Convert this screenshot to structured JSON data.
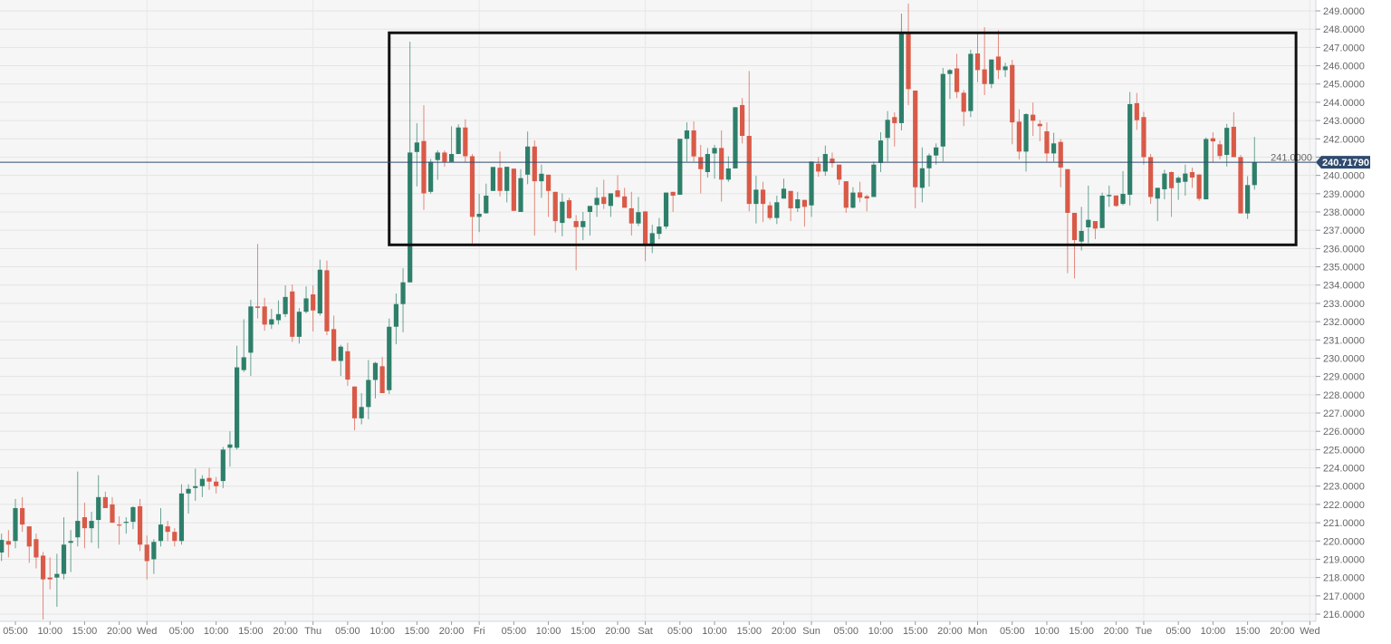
{
  "chart_data": {
    "type": "candlestick",
    "title": "",
    "xlabel": "",
    "ylabel": "",
    "ylim": [
      216,
      249
    ],
    "y_ticks": [
      "216.0000",
      "217.0000",
      "218.0000",
      "219.0000",
      "220.0000",
      "221.0000",
      "222.0000",
      "223.0000",
      "224.0000",
      "225.0000",
      "226.0000",
      "227.0000",
      "228.0000",
      "229.0000",
      "230.0000",
      "231.0000",
      "232.0000",
      "233.0000",
      "234.0000",
      "235.0000",
      "236.0000",
      "237.0000",
      "238.0000",
      "239.0000",
      "240.0000",
      "241.0000",
      "242.0000",
      "243.0000",
      "244.0000",
      "245.0000",
      "246.0000",
      "247.0000",
      "248.0000",
      "249.0000"
    ],
    "x_ticks": [
      "05:00",
      "10:00",
      "15:00",
      "20:00",
      "Wed",
      "05:00",
      "10:00",
      "15:00",
      "20:00",
      "Thu",
      "05:00",
      "10:00",
      "15:00",
      "20:00",
      "Fri",
      "05:00",
      "10:00",
      "15:00",
      "20:00",
      "Sat",
      "05:00",
      "10:00",
      "15:00",
      "20:00",
      "Sun",
      "05:00",
      "10:00",
      "15:00",
      "20:00",
      "Mon",
      "05:00",
      "10:00",
      "15:00",
      "20:00",
      "Tue",
      "05:00",
      "10:00",
      "15:00",
      "20:00",
      "Wed"
    ],
    "grid": true,
    "interval": "1h",
    "current_price": {
      "value": 240.7179,
      "label": "240.71790"
    },
    "annotation_box": {
      "time_range": [
        "Thu 11:00",
        "Tue 22:00"
      ],
      "price_range": [
        236.2,
        247.8
      ]
    },
    "colors": {
      "up": "#2e7f6a",
      "down": "#d95a48",
      "price_line": "#2f4a6e",
      "box": "#111111",
      "background": "#f6f6f6",
      "grid": "#e4e4e4"
    },
    "ohlc_columns": [
      "open",
      "high",
      "low",
      "close"
    ],
    "candles": [
      [
        219.37,
        220.4,
        218.9,
        220.06
      ],
      [
        220.0,
        220.6,
        219.1,
        219.8
      ],
      [
        220.0,
        222.3,
        219.6,
        221.8
      ],
      [
        221.8,
        222.4,
        220.5,
        220.9
      ],
      [
        220.8,
        220.8,
        218.8,
        219.7
      ],
      [
        220.1,
        220.4,
        218.5,
        219.1
      ],
      [
        219.2,
        219.4,
        215.7,
        217.9
      ],
      [
        218.0,
        219.1,
        217.35,
        217.9
      ],
      [
        218.0,
        219.3,
        216.4,
        218.2
      ],
      [
        218.2,
        221.3,
        217.9,
        219.8
      ],
      [
        219.9,
        220.6,
        218.3,
        220.0
      ],
      [
        220.2,
        223.8,
        219.7,
        221.1
      ],
      [
        221.3,
        222.1,
        219.6,
        220.7
      ],
      [
        220.7,
        221.6,
        219.9,
        221.1
      ],
      [
        221.15,
        223.6,
        219.6,
        222.4
      ],
      [
        222.4,
        222.7,
        221.8,
        221.8
      ],
      [
        222.0,
        222.4,
        221.0,
        221.0
      ],
      [
        220.9,
        221.35,
        219.8,
        220.85
      ],
      [
        221.0,
        221.3,
        220.4,
        221.05
      ],
      [
        221.05,
        221.9,
        220.65,
        221.85
      ],
      [
        221.9,
        222.3,
        219.45,
        219.8
      ],
      [
        219.8,
        220.3,
        217.9,
        218.9
      ],
      [
        219.0,
        220.1,
        218.2,
        219.95
      ],
      [
        220.0,
        221.8,
        219.7,
        220.9
      ],
      [
        220.8,
        221.1,
        220.0,
        220.5
      ],
      [
        220.5,
        220.7,
        219.7,
        220.0
      ],
      [
        220.0,
        223.1,
        219.8,
        222.6
      ],
      [
        222.6,
        223.1,
        221.5,
        222.85
      ],
      [
        222.9,
        223.96,
        222.2,
        223.0
      ],
      [
        223.0,
        223.6,
        222.4,
        223.4
      ],
      [
        223.45,
        224.0,
        222.8,
        223.25
      ],
      [
        223.25,
        223.5,
        222.6,
        223.0
      ],
      [
        223.28,
        225.15,
        222.9,
        225.0
      ],
      [
        225.1,
        226.0,
        224.07,
        225.28
      ],
      [
        225.1,
        230.68,
        225.0,
        229.5
      ],
      [
        229.35,
        232.13,
        229.24,
        230.05
      ],
      [
        230.3,
        233.2,
        229.03,
        232.83
      ],
      [
        232.83,
        236.25,
        232.17,
        232.75
      ],
      [
        232.83,
        233.3,
        231.5,
        231.84
      ],
      [
        231.84,
        232.7,
        231.6,
        232.13
      ],
      [
        232.08,
        233.16,
        231.84,
        232.41
      ],
      [
        232.41,
        233.98,
        232.25,
        233.35
      ],
      [
        233.65,
        234.03,
        230.89,
        231.17
      ],
      [
        231.17,
        232.74,
        230.8,
        232.54
      ],
      [
        232.54,
        233.93,
        232.45,
        233.27
      ],
      [
        233.49,
        233.98,
        231.46,
        232.61
      ],
      [
        232.45,
        235.39,
        232.33,
        234.84
      ],
      [
        234.81,
        235.34,
        231.26,
        231.47
      ],
      [
        231.59,
        232.33,
        229.85,
        229.85
      ],
      [
        229.85,
        230.73,
        229.03,
        230.63
      ],
      [
        230.38,
        230.84,
        228.48,
        228.83
      ],
      [
        228.45,
        228.45,
        226.05,
        226.71
      ],
      [
        226.71,
        228.09,
        226.38,
        227.33
      ],
      [
        227.33,
        229.9,
        226.66,
        228.81
      ],
      [
        228.81,
        229.8,
        227.8,
        229.74
      ],
      [
        229.56,
        230.07,
        228.09,
        228.09
      ],
      [
        228.25,
        232.17,
        228.04,
        231.72
      ],
      [
        231.72,
        233.54,
        230.76,
        232.96
      ],
      [
        232.96,
        234.92,
        231.42,
        234.15
      ],
      [
        234.15,
        247.31,
        234.15,
        241.25
      ],
      [
        241.28,
        242.85,
        239.4,
        241.8
      ],
      [
        241.88,
        243.84,
        238.11,
        239.02
      ],
      [
        239.1,
        240.9,
        239.0,
        240.75
      ],
      [
        240.84,
        241.37,
        239.76,
        241.25
      ],
      [
        241.25,
        241.37,
        240.47,
        240.75
      ],
      [
        240.75,
        242.69,
        240.75,
        241.17
      ],
      [
        241.17,
        242.79,
        241.17,
        242.62
      ],
      [
        242.62,
        243.07,
        240.72,
        241.05
      ],
      [
        241.05,
        241.17,
        236.21,
        237.73
      ],
      [
        237.73,
        238.99,
        236.9,
        237.9
      ],
      [
        237.93,
        239.55,
        237.9,
        238.89
      ],
      [
        239.15,
        240.46,
        239.15,
        240.46
      ],
      [
        240.42,
        241.3,
        238.85,
        239.15
      ],
      [
        239.15,
        240.47,
        238.52,
        240.47
      ],
      [
        240.37,
        240.37,
        238.06,
        238.06
      ],
      [
        238.0,
        240.34,
        238.0,
        239.85
      ],
      [
        240.04,
        242.4,
        239.52,
        241.58
      ],
      [
        241.58,
        241.91,
        236.71,
        239.68
      ],
      [
        239.68,
        240.59,
        238.77,
        240.09
      ],
      [
        240.04,
        240.04,
        237.73,
        239.15
      ],
      [
        239.1,
        239.1,
        236.87,
        237.5
      ],
      [
        237.4,
        239.02,
        236.67,
        238.56
      ],
      [
        238.64,
        238.77,
        237.62,
        237.66
      ],
      [
        237.5,
        237.83,
        234.81,
        237.17
      ],
      [
        237.17,
        238.0,
        236.46,
        237.5
      ],
      [
        238.0,
        238.33,
        236.71,
        238.33
      ],
      [
        238.38,
        239.35,
        237.73,
        238.77
      ],
      [
        238.82,
        239.76,
        238.16,
        238.44
      ],
      [
        238.33,
        239.02,
        237.73,
        239.02
      ],
      [
        239.18,
        240.01,
        238.82,
        238.82
      ],
      [
        238.85,
        239.32,
        238.23,
        238.23
      ],
      [
        238.2,
        239.1,
        236.71,
        237.37
      ],
      [
        237.37,
        238.82,
        237.23,
        237.99
      ],
      [
        238.03,
        238.03,
        235.31,
        236.2
      ],
      [
        236.2,
        237.3,
        235.75,
        236.84
      ],
      [
        236.8,
        237.67,
        236.51,
        237.2
      ],
      [
        237.2,
        239.06,
        237.07,
        239.06
      ],
      [
        239.1,
        239.1,
        238.0,
        238.89
      ],
      [
        238.94,
        242.0,
        238.94,
        242.0
      ],
      [
        242.0,
        242.9,
        240.76,
        242.46
      ],
      [
        242.46,
        242.95,
        240.76,
        241.04
      ],
      [
        241.0,
        241.67,
        239.02,
        240.34
      ],
      [
        240.18,
        241.5,
        239.88,
        241.17
      ],
      [
        241.2,
        241.67,
        239.82,
        241.5
      ],
      [
        241.5,
        242.46,
        238.56,
        239.77
      ],
      [
        239.77,
        241.04,
        239.65,
        240.38
      ],
      [
        240.38,
        243.73,
        240.38,
        243.73
      ],
      [
        243.85,
        244.23,
        241.75,
        242.16
      ],
      [
        242.16,
        245.71,
        238.03,
        238.44
      ],
      [
        238.44,
        239.98,
        237.37,
        239.22
      ],
      [
        239.22,
        239.65,
        237.45,
        238.44
      ],
      [
        238.36,
        238.56,
        237.57,
        237.67
      ],
      [
        237.67,
        238.89,
        237.34,
        238.53
      ],
      [
        238.73,
        239.82,
        238.73,
        239.27
      ],
      [
        239.15,
        239.15,
        237.5,
        238.2
      ],
      [
        238.2,
        239.1,
        238.0,
        238.69
      ],
      [
        238.66,
        238.66,
        237.2,
        238.28
      ],
      [
        238.36,
        240.76,
        237.73,
        240.76
      ],
      [
        240.64,
        241.0,
        239.93,
        240.21
      ],
      [
        240.21,
        241.63,
        239.98,
        241.17
      ],
      [
        240.92,
        241.25,
        240.43,
        240.67
      ],
      [
        240.59,
        240.59,
        239.48,
        239.77
      ],
      [
        239.68,
        239.68,
        237.95,
        238.23
      ],
      [
        238.23,
        239.35,
        238.2,
        239.06
      ],
      [
        239.07,
        239.65,
        238.53,
        238.78
      ],
      [
        238.86,
        238.94,
        238.03,
        238.74
      ],
      [
        238.82,
        240.76,
        238.82,
        240.59
      ],
      [
        240.68,
        242.36,
        240.18,
        241.91
      ],
      [
        242.05,
        243.52,
        240.76,
        243.04
      ],
      [
        243.19,
        243.45,
        241.58,
        242.86
      ],
      [
        242.86,
        248.85,
        242.46,
        247.78
      ],
      [
        247.78,
        249.4,
        243.84,
        244.72
      ],
      [
        244.64,
        244.64,
        238.2,
        239.35
      ],
      [
        239.32,
        241.53,
        238.53,
        240.39
      ],
      [
        240.39,
        241.2,
        239.39,
        241.09
      ],
      [
        241.09,
        241.75,
        240.59,
        241.53
      ],
      [
        241.58,
        245.88,
        240.76,
        245.55
      ],
      [
        245.55,
        245.83,
        244.18,
        245.76
      ],
      [
        245.85,
        246.65,
        244.23,
        244.56
      ],
      [
        244.52,
        244.67,
        242.7,
        243.48
      ],
      [
        243.52,
        246.87,
        243.19,
        246.65
      ],
      [
        246.67,
        247.81,
        245.1,
        245.76
      ],
      [
        245.8,
        248.11,
        244.39,
        245.0
      ],
      [
        245.0,
        246.34,
        244.77,
        246.34
      ],
      [
        246.5,
        247.94,
        245.27,
        245.76
      ],
      [
        245.76,
        246.16,
        245.38,
        245.96
      ],
      [
        246.04,
        246.32,
        241.7,
        242.9
      ],
      [
        242.94,
        243.62,
        240.87,
        241.3
      ],
      [
        241.3,
        243.4,
        240.21,
        243.35
      ],
      [
        243.32,
        243.98,
        242.16,
        242.99
      ],
      [
        242.82,
        243.02,
        241.86,
        242.69
      ],
      [
        242.41,
        242.9,
        240.76,
        241.2
      ],
      [
        241.2,
        242.33,
        240.76,
        241.75
      ],
      [
        241.83,
        241.99,
        239.35,
        240.43
      ],
      [
        240.34,
        240.34,
        234.65,
        237.95
      ],
      [
        237.95,
        237.95,
        234.36,
        236.46
      ],
      [
        236.38,
        238.28,
        235.89,
        236.96
      ],
      [
        237.16,
        239.44,
        236.3,
        237.57
      ],
      [
        237.5,
        237.5,
        236.51,
        237.09
      ],
      [
        237.12,
        239.06,
        237.12,
        238.89
      ],
      [
        238.86,
        239.44,
        238.28,
        238.93
      ],
      [
        238.9,
        238.9,
        238.28,
        238.33
      ],
      [
        238.44,
        240.23,
        238.36,
        238.99
      ],
      [
        238.94,
        244.56,
        238.36,
        243.9
      ],
      [
        243.95,
        244.51,
        242.49,
        243.02
      ],
      [
        243.19,
        243.48,
        240.59,
        241.0
      ],
      [
        241.0,
        241.17,
        238.44,
        238.82
      ],
      [
        238.73,
        239.32,
        237.5,
        239.32
      ],
      [
        239.24,
        240.31,
        238.69,
        240.1
      ],
      [
        240.18,
        240.21,
        237.73,
        239.3
      ],
      [
        239.6,
        239.95,
        238.66,
        239.87
      ],
      [
        239.65,
        240.59,
        238.89,
        240.1
      ],
      [
        240.18,
        240.43,
        239.32,
        239.88
      ],
      [
        240.05,
        240.05,
        238.61,
        238.72
      ],
      [
        238.69,
        242.08,
        238.69,
        241.99
      ],
      [
        242.03,
        242.36,
        240.71,
        241.86
      ],
      [
        241.7,
        241.91,
        240.87,
        241.06
      ],
      [
        241.12,
        242.82,
        240.48,
        242.6
      ],
      [
        242.66,
        243.45,
        241.0,
        241.0
      ],
      [
        241.0,
        241.12,
        237.92,
        237.92
      ],
      [
        237.92,
        239.96,
        237.62,
        239.47
      ],
      [
        239.47,
        242.11,
        239.22,
        240.7179
      ]
    ]
  }
}
